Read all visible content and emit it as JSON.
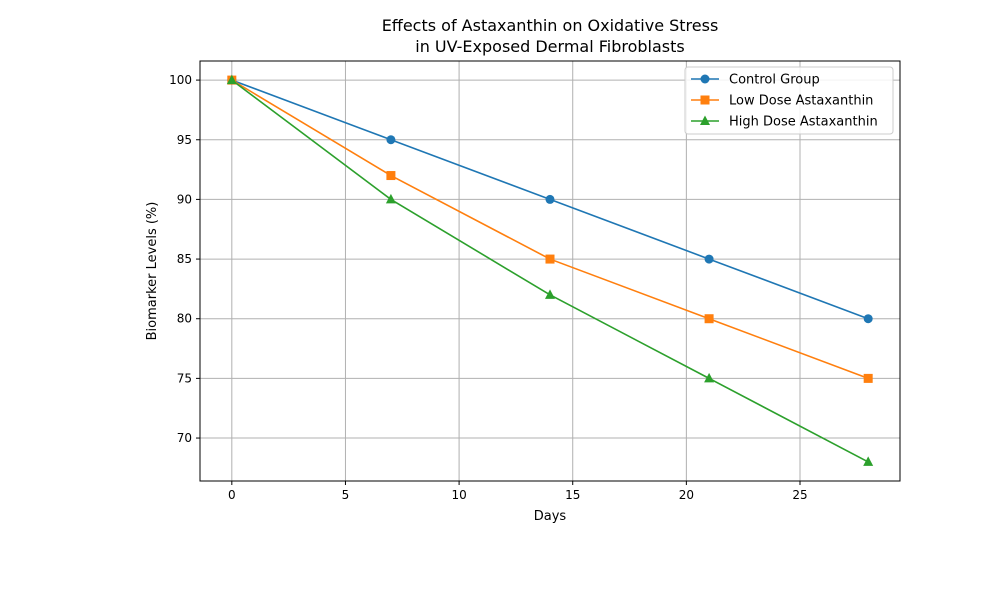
{
  "chart_data": {
    "type": "line",
    "title": [
      "Effects of Astaxanthin on Oxidative Stress",
      "in UV-Exposed Dermal Fibroblasts"
    ],
    "xlabel": "Days",
    "ylabel": "Biomarker Levels (%)",
    "x": [
      0,
      7,
      14,
      21,
      28
    ],
    "xlim": [
      -1.4,
      29.4
    ],
    "ylim": [
      66.4,
      101.6
    ],
    "xticks": [
      0,
      5,
      10,
      15,
      20,
      25
    ],
    "yticks": [
      70,
      75,
      80,
      85,
      90,
      95,
      100
    ],
    "grid": true,
    "legend_position": "top-right",
    "series": [
      {
        "name": "Control Group",
        "values": [
          100,
          95,
          90,
          85,
          80
        ],
        "color": "#1f77b4",
        "marker": "circle"
      },
      {
        "name": "Low Dose Astaxanthin",
        "values": [
          100,
          92,
          85,
          80,
          75
        ],
        "color": "#ff7f0e",
        "marker": "square"
      },
      {
        "name": "High Dose Astaxanthin",
        "values": [
          100,
          90,
          82,
          75,
          68
        ],
        "color": "#2ca02c",
        "marker": "triangle"
      }
    ]
  }
}
